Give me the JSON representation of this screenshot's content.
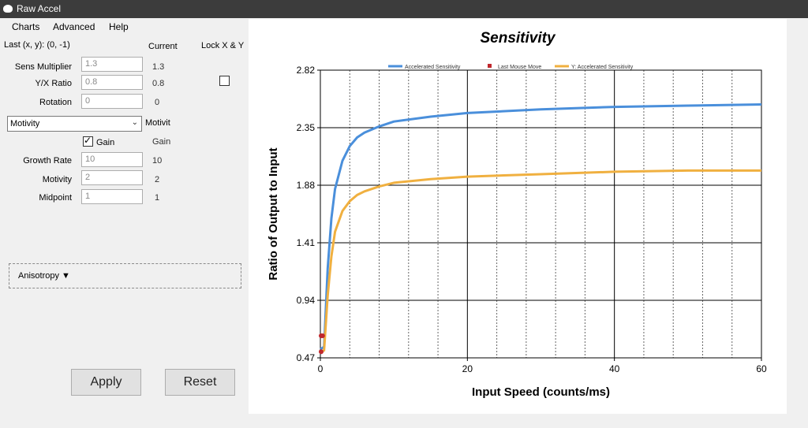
{
  "window": {
    "title": "Raw Accel"
  },
  "menu": {
    "items": [
      "Charts",
      "Advanced",
      "Help"
    ]
  },
  "panel": {
    "last_xy": "Last (x, y): (0, -1)",
    "current_header": "Current",
    "lock_label": "Lock X & Y",
    "lock_checked": false,
    "sens_multiplier": {
      "label": "Sens Multiplier",
      "value": "1.3",
      "current": "1.3"
    },
    "yx_ratio": {
      "label": "Y/X Ratio",
      "value": "0.8",
      "current": "0.8"
    },
    "rotation": {
      "label": "Rotation",
      "value": "0",
      "current": "0"
    },
    "accel_type": {
      "selected": "Motivity",
      "current": "Motivit"
    },
    "gain": {
      "label": "Gain",
      "checked": true,
      "current": "Gain"
    },
    "growth_rate": {
      "label": "Growth Rate",
      "value": "10",
      "current": "10"
    },
    "motivity": {
      "label": "Motivity",
      "value": "2",
      "current": "2"
    },
    "midpoint": {
      "label": "Midpoint",
      "value": "1",
      "current": "1"
    },
    "anisotropy_label": "Anisotropy ▼",
    "apply_label": "Apply",
    "reset_label": "Reset"
  },
  "chart_data": {
    "type": "line",
    "title": "Sensitivity",
    "xlabel": "Input Speed (counts/ms)",
    "ylabel": "Ratio of Output to Input",
    "xlim": [
      0,
      60
    ],
    "ylim": [
      0.47,
      2.82
    ],
    "xticks": [
      "0",
      "20",
      "40",
      "60"
    ],
    "yticks": [
      "0.47",
      "0.94",
      "1.41",
      "1.88",
      "2.35",
      "2.82"
    ],
    "grid": true,
    "legend_position": "top",
    "series": [
      {
        "name": "Accelerated Sensitivity",
        "color": "#4a8fdb",
        "x": [
          0,
          0.5,
          1,
          1.5,
          2,
          3,
          4,
          5,
          6,
          8,
          10,
          15,
          20,
          30,
          40,
          50,
          60
        ],
        "y": [
          0.54,
          0.56,
          1.2,
          1.61,
          1.85,
          2.08,
          2.2,
          2.27,
          2.31,
          2.36,
          2.4,
          2.44,
          2.47,
          2.5,
          2.52,
          2.53,
          2.54
        ]
      },
      {
        "name": "Last Mouse Move",
        "color": "#c0282d",
        "x": [
          0,
          0,
          0.2
        ],
        "y": [
          0.65,
          0.52,
          0.65
        ]
      },
      {
        "name": "Y: Accelerated Sensitivity",
        "color": "#f0b040",
        "x": [
          0,
          0.5,
          1,
          1.5,
          2,
          3,
          4,
          5,
          6,
          8,
          10,
          15,
          20,
          30,
          40,
          50,
          60
        ],
        "y": [
          0.52,
          0.53,
          0.98,
          1.3,
          1.5,
          1.67,
          1.75,
          1.8,
          1.83,
          1.87,
          1.9,
          1.93,
          1.95,
          1.97,
          1.99,
          2.0,
          2.0
        ]
      }
    ]
  }
}
